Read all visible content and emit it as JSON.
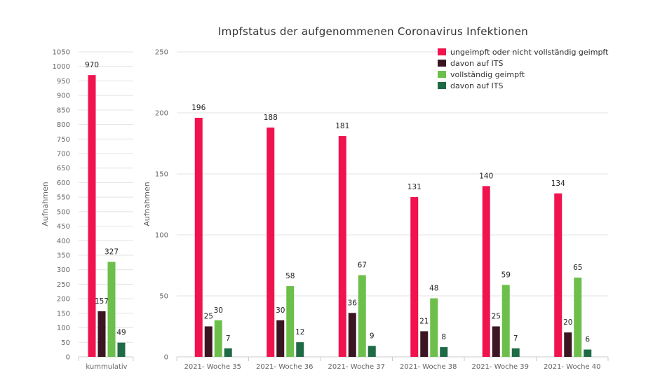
{
  "title": "Impfstatus der aufgenommenen Coronavirus Infektionen",
  "colors": {
    "ungeimpft": "#f0134d",
    "ungeimpft_its": "#3b1522",
    "geimpft": "#6dbf4b",
    "geimpft_its": "#1f6b45"
  },
  "legend": [
    {
      "label": "ungeimpft oder nicht vollständig geimpft",
      "color_key": "ungeimpft"
    },
    {
      "label": "davon auf ITS",
      "color_key": "ungeimpft_its"
    },
    {
      "label": "vollständig geimpft",
      "color_key": "geimpft"
    },
    {
      "label": "davon auf ITS",
      "color_key": "geimpft_its"
    }
  ],
  "chart_data": [
    {
      "type": "bar",
      "ylabel": "Aufnahmen",
      "ylim": [
        0,
        1050
      ],
      "yticks": [
        0,
        50,
        100,
        150,
        200,
        250,
        300,
        350,
        400,
        450,
        500,
        550,
        600,
        650,
        700,
        750,
        800,
        850,
        900,
        950,
        1000,
        1050
      ],
      "categories": [
        "kummulativ"
      ],
      "series": [
        {
          "name": "ungeimpft oder nicht vollständig geimpft",
          "color_key": "ungeimpft",
          "values": [
            970
          ]
        },
        {
          "name": "davon auf ITS",
          "color_key": "ungeimpft_its",
          "values": [
            157
          ]
        },
        {
          "name": "vollständig geimpft",
          "color_key": "geimpft",
          "values": [
            327
          ]
        },
        {
          "name": "davon auf ITS",
          "color_key": "geimpft_its",
          "values": [
            49
          ]
        }
      ],
      "grid": true
    },
    {
      "type": "bar",
      "ylabel": "Aufnahmen",
      "ylim": [
        0,
        250
      ],
      "yticks": [
        0,
        50,
        100,
        150,
        200,
        250
      ],
      "categories": [
        "2021- Woche 35",
        "2021- Woche 36",
        "2021- Woche 37",
        "2021- Woche 38",
        "2021- Woche 39",
        "2021- Woche 40"
      ],
      "series": [
        {
          "name": "ungeimpft oder nicht vollständig geimpft",
          "color_key": "ungeimpft",
          "values": [
            196,
            188,
            181,
            131,
            140,
            134
          ]
        },
        {
          "name": "davon auf ITS",
          "color_key": "ungeimpft_its",
          "values": [
            25,
            30,
            36,
            21,
            25,
            20
          ]
        },
        {
          "name": "vollständig geimpft",
          "color_key": "geimpft",
          "values": [
            30,
            58,
            67,
            48,
            59,
            65
          ]
        },
        {
          "name": "davon auf ITS",
          "color_key": "geimpft_its",
          "values": [
            7,
            12,
            9,
            8,
            7,
            6
          ]
        }
      ],
      "grid": true,
      "legend_position": "top-right"
    }
  ]
}
